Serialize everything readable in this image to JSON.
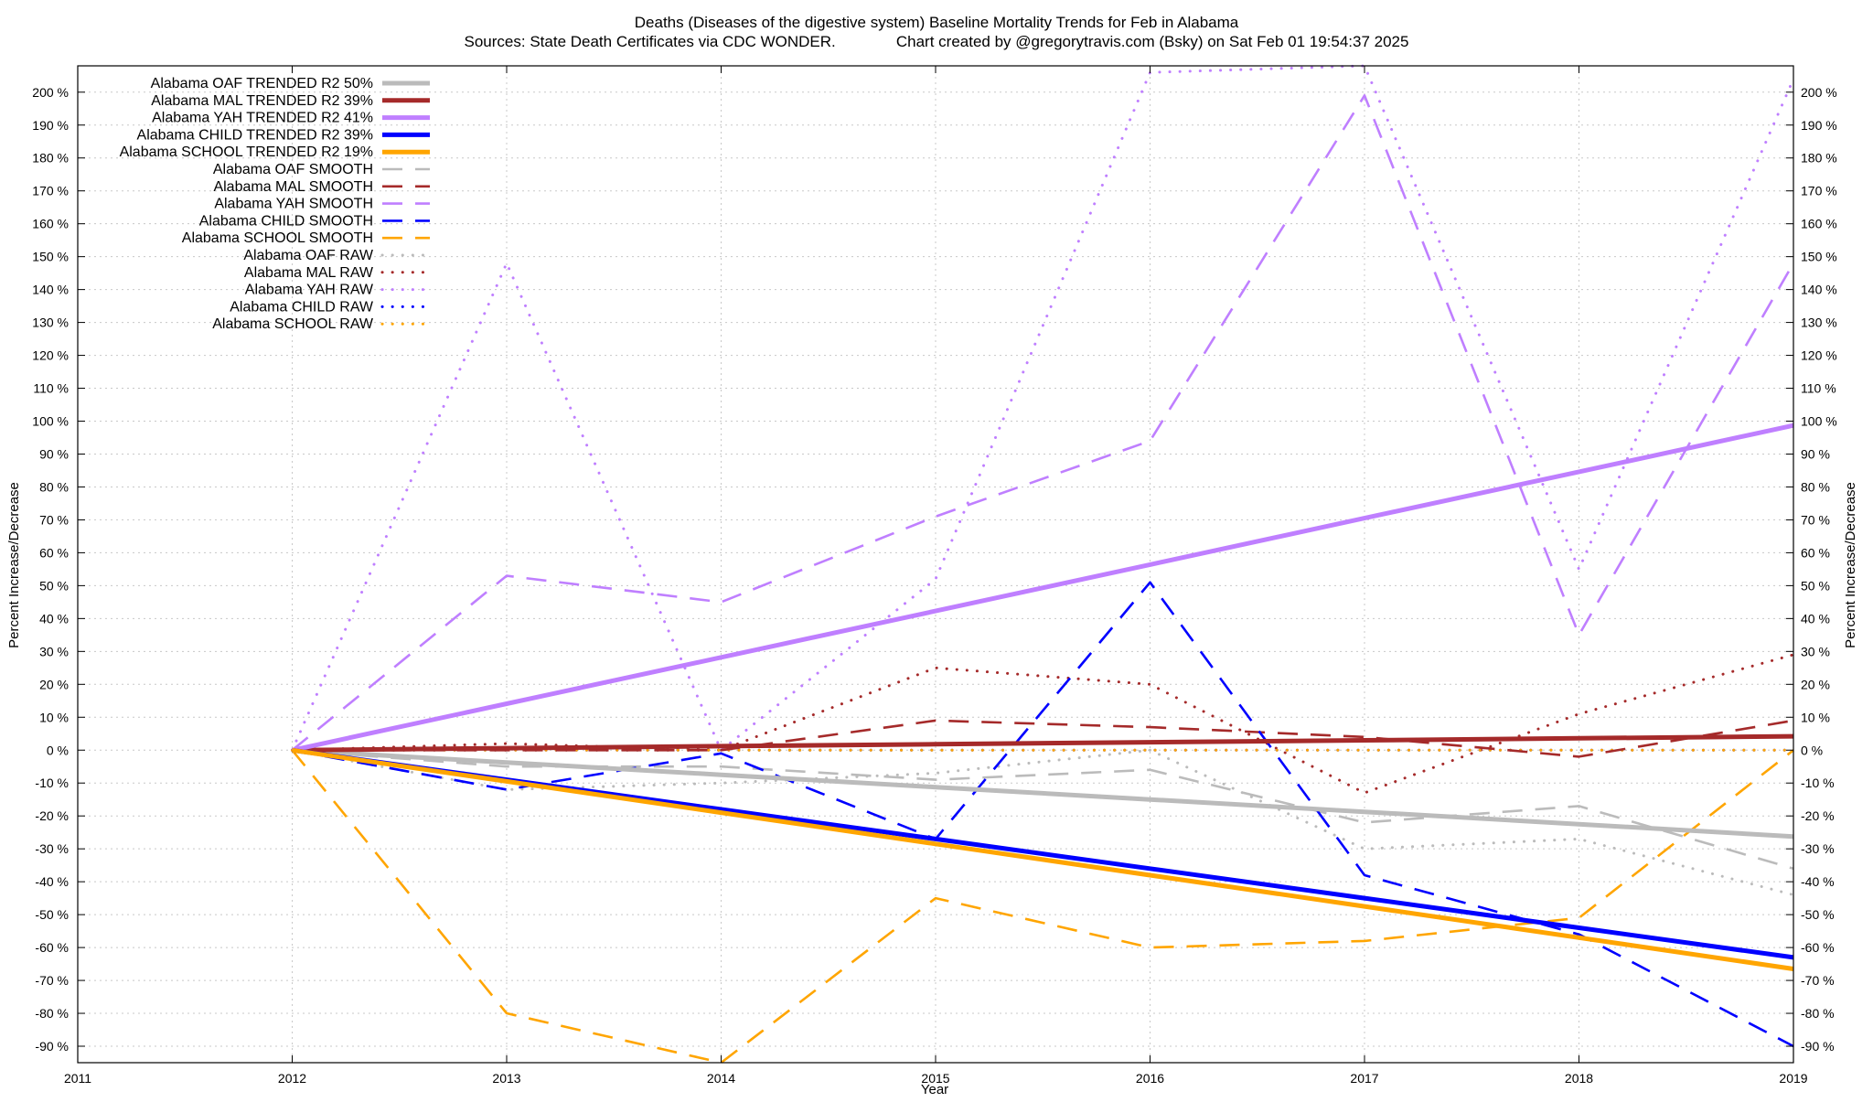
{
  "chart_data": {
    "type": "line",
    "title": "Deaths (Diseases of the digestive system)  Baseline Mortality Trends for Feb in Alabama",
    "subtitle": "Sources: State Death Certificates via CDC WONDER.              Chart created by @gregorytravis.com (Bsky) on Sat Feb 01 19:54:37 2025",
    "xlabel": "Year",
    "ylabel": "Percent Increase/Decrease",
    "y2label": "Percent Increase/Decrease",
    "xlim": [
      2011,
      2019
    ],
    "ylim": [
      -95,
      208
    ],
    "xticks": [
      2011,
      2012,
      2013,
      2014,
      2015,
      2016,
      2017,
      2018,
      2019
    ],
    "yticks": [
      -90,
      -80,
      -70,
      -60,
      -50,
      -40,
      -30,
      -20,
      -10,
      0,
      10,
      20,
      30,
      40,
      50,
      60,
      70,
      80,
      90,
      100,
      110,
      120,
      130,
      140,
      150,
      160,
      170,
      180,
      190,
      200
    ],
    "ytick_suffix": " %",
    "grid": true,
    "legend_position": "top-left",
    "x": [
      2012,
      2013,
      2014,
      2015,
      2016,
      2017,
      2018,
      2019
    ],
    "series": [
      {
        "name": "Alabama OAF TRENDED R2  50%",
        "color": "#bbbbbb",
        "style": "solid",
        "values": [
          0,
          -3.75,
          -7.5,
          -11.25,
          -15,
          -18.75,
          -22.5,
          -26.25
        ]
      },
      {
        "name": "Alabama MAL TRENDED R2  39%",
        "color": "#a52a2a",
        "style": "solid",
        "values": [
          0,
          0.6,
          1.2,
          1.8,
          2.4,
          3.0,
          3.6,
          4.2
        ]
      },
      {
        "name": "Alabama YAH TRENDED R2  41%",
        "color": "#bf7fff",
        "style": "solid",
        "values": [
          0,
          14.1,
          28.2,
          42.3,
          56.4,
          70.5,
          84.6,
          98.7
        ]
      },
      {
        "name": "Alabama CHILD TRENDED R2  39%",
        "color": "#0000ff",
        "style": "solid",
        "values": [
          0,
          -9,
          -18,
          -27,
          -36,
          -45,
          -54,
          -63
        ]
      },
      {
        "name": "Alabama SCHOOL TRENDED R2  19%",
        "color": "#ffa500",
        "style": "solid",
        "values": [
          0,
          -9.5,
          -19,
          -28.5,
          -38,
          -47.5,
          -57,
          -66.5
        ]
      },
      {
        "name": "Alabama OAF SMOOTH",
        "color": "#bbbbbb",
        "style": "dashed",
        "values": [
          0,
          -5,
          -5,
          -9,
          -6,
          -22,
          -17,
          -36
        ]
      },
      {
        "name": "Alabama MAL SMOOTH",
        "color": "#a52a2a",
        "style": "dashed",
        "values": [
          0,
          0,
          0,
          9,
          7,
          4,
          -2,
          9
        ]
      },
      {
        "name": "Alabama YAH SMOOTH",
        "color": "#bf7fff",
        "style": "dashed",
        "values": [
          0,
          53,
          45,
          71,
          94,
          199,
          35,
          148
        ]
      },
      {
        "name": "Alabama CHILD SMOOTH",
        "color": "#0000ff",
        "style": "dashed",
        "values": [
          0,
          -12,
          -1,
          -27,
          51,
          -38,
          -56,
          -90
        ]
      },
      {
        "name": "Alabama SCHOOL SMOOTH",
        "color": "#ffa500",
        "style": "dashed",
        "values": [
          0,
          -80,
          -95,
          -45,
          -60,
          -58,
          -51,
          0
        ]
      },
      {
        "name": "Alabama OAF RAW",
        "color": "#bbbbbb",
        "style": "dotted",
        "values": [
          0,
          -12,
          -10,
          -7,
          0,
          -30,
          -27,
          -44
        ]
      },
      {
        "name": "Alabama MAL RAW",
        "color": "#a52a2a",
        "style": "dotted",
        "values": [
          0,
          2,
          0,
          25,
          20,
          -13,
          11,
          29
        ]
      },
      {
        "name": "Alabama YAH RAW",
        "color": "#bf7fff",
        "style": "dotted",
        "values": [
          0,
          148,
          0,
          52,
          206,
          208,
          55,
          204
        ]
      },
      {
        "name": "Alabama CHILD RAW",
        "color": "#0000ff",
        "style": "dotted",
        "values": [
          0,
          0,
          0,
          0,
          0,
          0,
          0,
          0
        ]
      },
      {
        "name": "Alabama SCHOOL RAW",
        "color": "#ffa500",
        "style": "dotted",
        "values": [
          0,
          0,
          0,
          0,
          0,
          0,
          0,
          0
        ]
      }
    ]
  }
}
